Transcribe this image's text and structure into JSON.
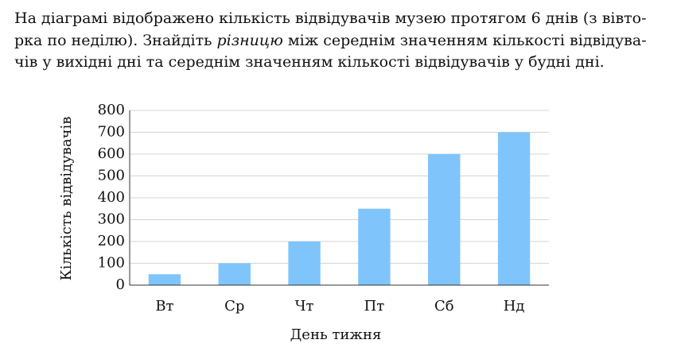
{
  "problem": {
    "lines": [
      [
        "На діаграмі відображено кількість відвідувачів музею протягом 6 днів (з вівто-"
      ],
      [
        "рка по неділю). Знайдіть ",
        "різницю",
        " між середнім значенням кількості відвідува-"
      ],
      [
        "чів у вихідні дні та середнім значенням кількості відвідувачів у будні дні."
      ]
    ]
  },
  "chart_data": {
    "type": "bar",
    "x_label": "День тижня",
    "y_label": "Кількість відвідувачів",
    "categories": [
      "Вт",
      "Ср",
      "Чт",
      "Пт",
      "Сб",
      "Нд"
    ],
    "values": [
      50,
      100,
      200,
      350,
      600,
      700
    ],
    "color": "#7fc5fc",
    "ylim": [
      0,
      800
    ],
    "yticks": [
      0,
      100,
      200,
      300,
      400,
      500,
      600,
      700,
      800
    ],
    "grid": true
  }
}
